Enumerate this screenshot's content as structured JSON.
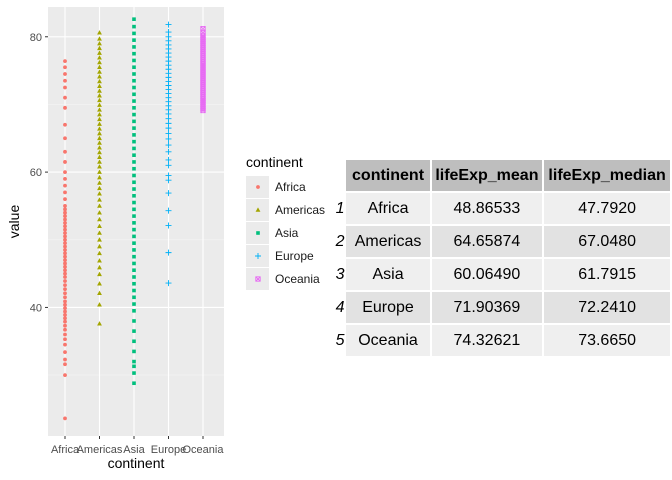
{
  "chart_data": {
    "type": "scatter",
    "title": "",
    "xlabel": "continent",
    "ylabel": "value",
    "categories": [
      "Africa",
      "Americas",
      "Asia",
      "Europe",
      "Oceania"
    ],
    "y_ticks": [
      40,
      60,
      80
    ],
    "ylim": [
      21.0,
      84.4
    ],
    "grid": true,
    "legend": {
      "title": "continent",
      "position": "right"
    },
    "series": [
      {
        "name": "Africa",
        "color": "#F8766D",
        "shape": "circle",
        "values": [
          23.6,
          30.0,
          31.6,
          32.3,
          33.4,
          34.5,
          35.3,
          36.0,
          36.7,
          37.3,
          37.9,
          38.4,
          38.9,
          39.4,
          39.9,
          40.4,
          40.9,
          41.5,
          42.1,
          42.7,
          43.3,
          43.9,
          44.5,
          45.0,
          45.5,
          46.0,
          46.5,
          47.0,
          47.5,
          48.0,
          48.5,
          49.0,
          49.5,
          50.0,
          50.5,
          51.0,
          51.5,
          52.0,
          52.5,
          53.0,
          53.5,
          54.0,
          54.5,
          55.0,
          56.0,
          57.0,
          58.0,
          59.0,
          60.0,
          61.5,
          63.0,
          65.0,
          67.0,
          69.5,
          71.0,
          72.5,
          73.5,
          74.5,
          75.5,
          76.4
        ]
      },
      {
        "name": "Americas",
        "color": "#A3A500",
        "shape": "triangle",
        "values": [
          37.6,
          40.4,
          42.1,
          43.5,
          44.9,
          45.9,
          46.9,
          48.0,
          49.0,
          50.0,
          51.0,
          52.0,
          53.0,
          54.0,
          55.0,
          55.9,
          56.8,
          57.6,
          58.4,
          59.2,
          60.0,
          60.8,
          61.5,
          62.2,
          62.9,
          63.6,
          64.3,
          65.0,
          65.7,
          66.4,
          67.1,
          67.8,
          68.5,
          69.2,
          69.9,
          70.6,
          71.3,
          72.0,
          72.7,
          73.4,
          74.1,
          74.8,
          75.5,
          76.2,
          76.9,
          77.6,
          78.3,
          79.0,
          79.7,
          80.6
        ]
      },
      {
        "name": "Asia",
        "color": "#00BF7D",
        "shape": "square",
        "values": [
          28.8,
          30.3,
          31.3,
          32.0,
          33.5,
          35.0,
          36.5,
          38.0,
          39.5,
          40.5,
          41.5,
          42.5,
          43.5,
          44.5,
          45.5,
          46.5,
          47.5,
          48.5,
          49.5,
          50.5,
          51.5,
          52.5,
          53.5,
          54.5,
          55.5,
          56.5,
          57.5,
          58.5,
          59.5,
          60.5,
          61.5,
          62.5,
          63.5,
          64.5,
          65.5,
          66.5,
          67.5,
          68.5,
          69.5,
          70.5,
          71.5,
          72.5,
          73.5,
          74.5,
          75.5,
          76.5,
          77.5,
          78.5,
          79.5,
          80.5,
          81.5,
          82.6
        ]
      },
      {
        "name": "Europe",
        "color": "#00B0F6",
        "shape": "plus",
        "values": [
          43.6,
          48.1,
          52.1,
          54.3,
          56.9,
          58.8,
          59.5,
          61.0,
          61.8,
          63.0,
          64.0,
          64.9,
          65.7,
          66.5,
          67.2,
          67.9,
          68.6,
          69.2,
          69.8,
          70.4,
          71.0,
          71.6,
          72.2,
          72.8,
          73.4,
          74.0,
          74.6,
          75.2,
          75.8,
          76.4,
          77.0,
          77.6,
          78.2,
          78.8,
          79.4,
          80.0,
          80.7,
          81.8
        ]
      },
      {
        "name": "Oceania",
        "color": "#E76BF3",
        "shape": "boxx",
        "values": [
          69.1,
          69.4,
          69.7,
          70.0,
          70.3,
          70.6,
          70.9,
          71.2,
          71.5,
          71.8,
          72.1,
          72.4,
          72.7,
          73.0,
          73.3,
          73.6,
          73.9,
          74.2,
          74.5,
          74.8,
          75.1,
          75.4,
          75.7,
          76.0,
          76.3,
          76.6,
          76.9,
          77.2,
          77.5,
          77.8,
          78.1,
          78.4,
          78.7,
          79.0,
          79.3,
          79.6,
          79.9,
          80.2,
          80.6,
          81.2
        ]
      }
    ]
  },
  "table": {
    "headers": [
      "continent",
      "lifeExp_mean",
      "lifeExp_median"
    ],
    "rows": [
      {
        "n": "1",
        "continent": "Africa",
        "mean": "48.86533",
        "median": "47.7920"
      },
      {
        "n": "2",
        "continent": "Americas",
        "mean": "64.65874",
        "median": "67.0480"
      },
      {
        "n": "3",
        "continent": "Asia",
        "mean": "60.06490",
        "median": "61.7915"
      },
      {
        "n": "4",
        "continent": "Europe",
        "mean": "71.90369",
        "median": "72.2410"
      },
      {
        "n": "5",
        "continent": "Oceania",
        "mean": "74.32621",
        "median": "73.6650"
      }
    ]
  }
}
